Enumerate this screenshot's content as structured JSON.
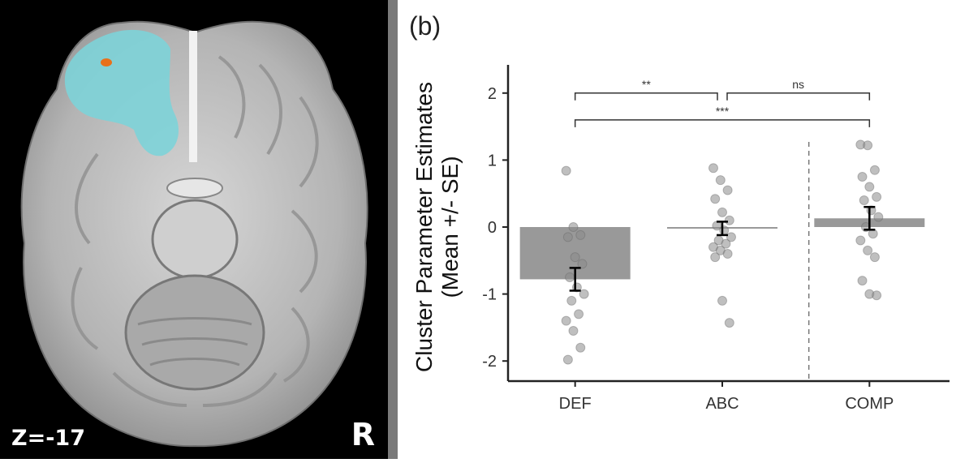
{
  "brain_panel": {
    "slice_label": "Z=-17",
    "orientation_label": "R",
    "colors": {
      "background": "#000000",
      "cluster": "#7dd3d8",
      "peak": "#e8701a",
      "tissue": "#bdbdbd"
    }
  },
  "chart_data": {
    "type": "bar",
    "panel_label": "(b)",
    "title": "",
    "xlabel": "",
    "ylabel_lines": [
      "Cluster Parameter Estimates",
      "(Mean +/- SE)"
    ],
    "categories": [
      "DEF",
      "ABC",
      "COMP"
    ],
    "values": [
      -0.78,
      -0.02,
      0.13
    ],
    "se": [
      0.17,
      0.1,
      0.17
    ],
    "ylim": [
      -2.3,
      2.3
    ],
    "yticks": [
      -2,
      -1,
      0,
      1,
      2
    ],
    "vertical_dashed_line_between": [
      "ABC",
      "COMP"
    ],
    "points": [
      [
        0.84,
        0.0,
        -0.12,
        -0.15,
        -0.45,
        -0.55,
        -0.75,
        -0.9,
        -1.0,
        -1.1,
        -1.3,
        -1.4,
        -1.55,
        -1.8,
        -1.98
      ],
      [
        0.88,
        0.7,
        0.55,
        0.42,
        0.22,
        0.1,
        0.02,
        -0.05,
        -0.15,
        -0.2,
        -0.25,
        -0.3,
        -0.35,
        -0.4,
        -0.45,
        -1.1,
        -1.43
      ],
      [
        1.23,
        1.22,
        0.85,
        0.75,
        0.6,
        0.45,
        0.4,
        0.25,
        0.15,
        0.0,
        -0.1,
        -0.2,
        -0.35,
        -0.45,
        -0.8,
        -1.0,
        -1.02
      ]
    ],
    "significance": [
      {
        "from": "DEF",
        "to": "ABC",
        "label": "**"
      },
      {
        "from": "ABC",
        "to": "COMP",
        "label": "ns"
      },
      {
        "from": "DEF",
        "to": "COMP",
        "label": "***"
      }
    ],
    "colors": {
      "bar": "#999999",
      "point": "#8a8a8a",
      "errorbar": "#000000",
      "axis": "#222222"
    }
  }
}
